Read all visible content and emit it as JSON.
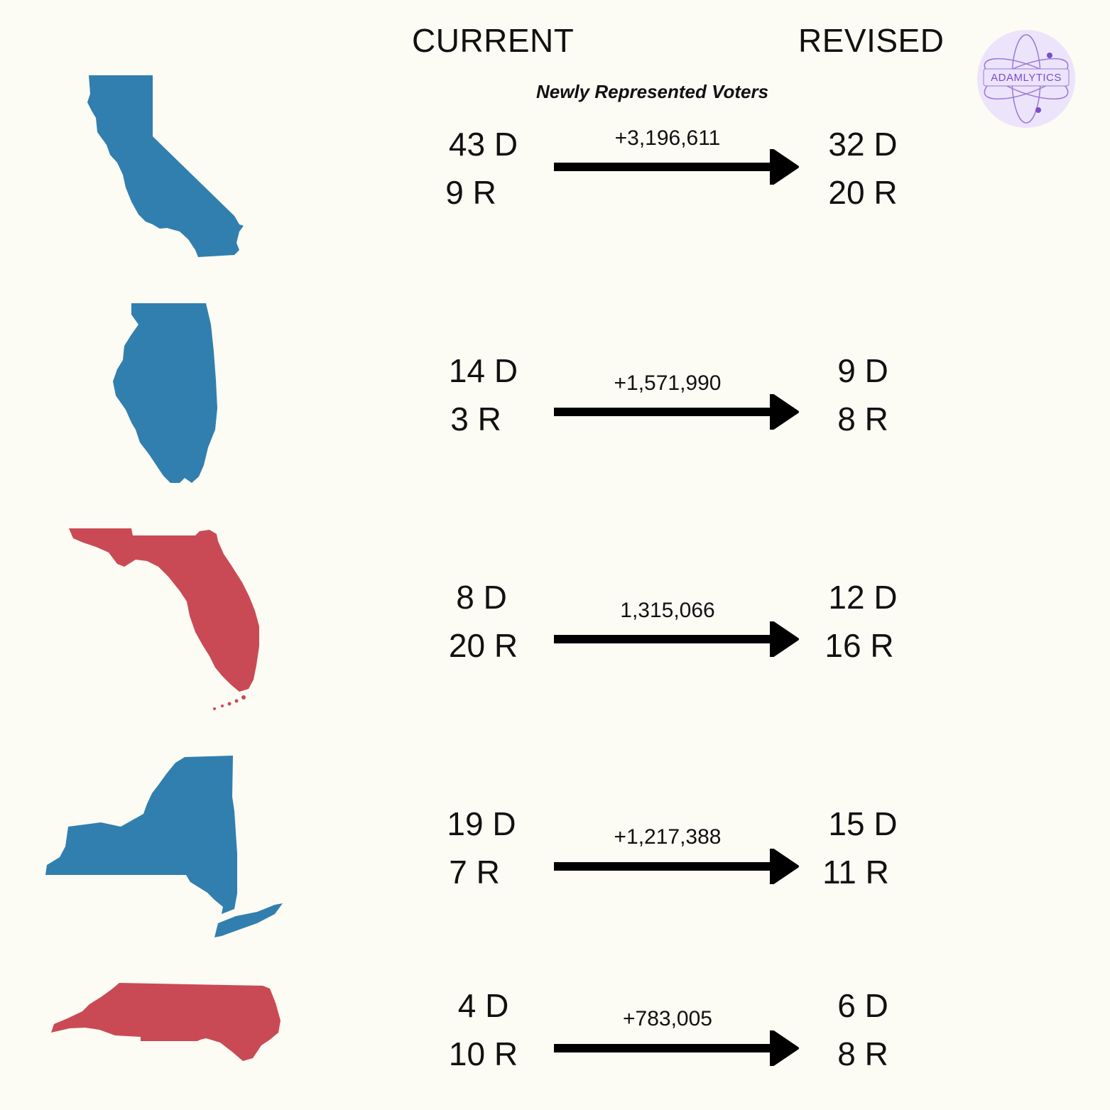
{
  "header": {
    "current": "CURRENT",
    "revised": "REVISED",
    "subtitle": "Newly Represented Voters"
  },
  "logo": {
    "text": "ADAMLYTICS",
    "color": "#7a4fc8"
  },
  "colors": {
    "blue": "#317fae",
    "red": "#c94a55",
    "arrow": "#000000",
    "background": "#fcfbf4"
  },
  "rows": [
    {
      "color": "blue",
      "current_d": "43 D",
      "current_r": "9 R",
      "change": "+3,196,611",
      "revised_d": "32 D",
      "revised_r": "20 R"
    },
    {
      "color": "blue",
      "current_d": "14 D",
      "current_r": "3 R",
      "change": "+1,571,990",
      "revised_d": "9 D",
      "revised_r": "8 R"
    },
    {
      "color": "red",
      "current_d": "8 D",
      "current_r": "20 R",
      "change": "1,315,066",
      "revised_d": "12 D",
      "revised_r": "16 R"
    },
    {
      "color": "blue",
      "current_d": "19 D",
      "current_r": "7 R",
      "change": "+1,217,388",
      "revised_d": "15 D",
      "revised_r": "11 R"
    },
    {
      "color": "red",
      "current_d": "4 D",
      "current_r": "10 R",
      "change": "+783,005",
      "revised_d": "6 D",
      "revised_r": "8 R"
    }
  ]
}
